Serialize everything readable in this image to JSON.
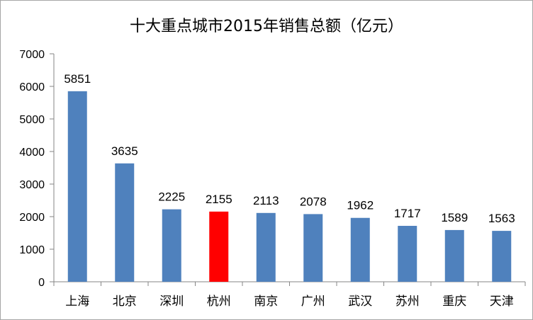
{
  "chart_data": {
    "type": "bar",
    "title": "十大重点城市2015年销售总额（亿元）",
    "categories": [
      "上海",
      "北京",
      "深圳",
      "杭州",
      "南京",
      "广州",
      "武汉",
      "苏州",
      "重庆",
      "天津"
    ],
    "values": [
      5851,
      3635,
      2225,
      2155,
      2113,
      2078,
      1962,
      1717,
      1589,
      1563
    ],
    "highlight_index": 3,
    "colors": {
      "bar": "#4f81bd",
      "highlight": "#ff0000",
      "axis": "#868686"
    },
    "ylim": [
      0,
      7000
    ],
    "yticks": [
      0,
      1000,
      2000,
      3000,
      4000,
      5000,
      6000,
      7000
    ],
    "grid": false,
    "legend": "none",
    "data_labels": true
  }
}
